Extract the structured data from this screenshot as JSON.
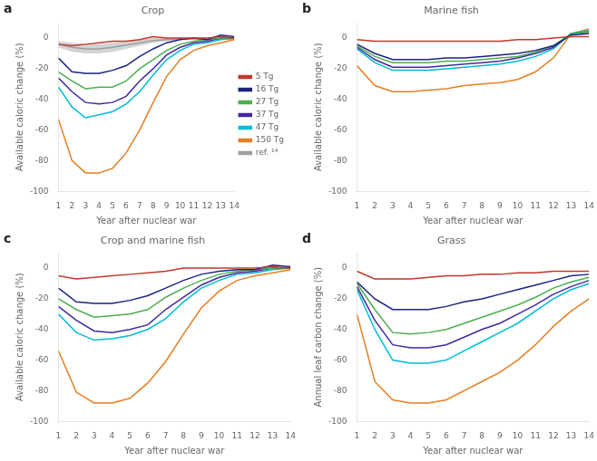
{
  "chart_data": [
    {
      "type": "line",
      "title": "Crop",
      "annotations": [
        {
          "text": "a"
        }
      ],
      "xlabel": "Year after nuclear war",
      "ylabel": "Available caloric change (%)",
      "x": [
        1,
        2,
        3,
        4,
        5,
        6,
        7,
        8,
        9,
        10,
        11,
        12,
        13,
        14
      ],
      "xlim": [
        1,
        14
      ],
      "xticks": [
        1,
        2,
        3,
        4,
        5,
        6,
        7,
        8,
        9,
        10,
        11,
        12,
        13,
        14
      ],
      "ylim": [
        -100,
        10
      ],
      "yticks": [
        0,
        -20,
        -40,
        -60,
        -80,
        -100
      ],
      "grid": false,
      "legend": "right",
      "series": [
        {
          "name": "5 Tg",
          "color": "#c0392b",
          "values": [
            -4,
            -5,
            -4,
            -3,
            -2,
            -2,
            -1,
            1,
            0,
            0,
            0,
            0,
            1,
            0
          ]
        },
        {
          "name": "16 Tg",
          "color": "#1a237e",
          "values": [
            -13,
            -22,
            -23,
            -23,
            -21,
            -18,
            -12,
            -7,
            -3,
            -1,
            0,
            -1,
            2,
            1
          ]
        },
        {
          "name": "27 Tg",
          "color": "#4caf50",
          "values": [
            -22,
            -28,
            -33,
            -32,
            -32,
            -28,
            -20,
            -14,
            -8,
            -4,
            -2,
            -1,
            0,
            0
          ]
        },
        {
          "name": "37 Tg",
          "color": "#4527a0",
          "values": [
            -26,
            -35,
            -42,
            -43,
            -42,
            -38,
            -28,
            -20,
            -11,
            -6,
            -3,
            -2,
            0,
            0
          ]
        },
        {
          "name": "47 Tg",
          "color": "#00bcd4",
          "values": [
            -32,
            -45,
            -52,
            -50,
            -48,
            -43,
            -35,
            -24,
            -14,
            -8,
            -4,
            -3,
            -1,
            0
          ]
        },
        {
          "name": "150 Tg",
          "color": "#e67e22",
          "values": [
            -53,
            -80,
            -88,
            -88,
            -85,
            -75,
            -60,
            -42,
            -25,
            -14,
            -8,
            -5,
            -3,
            -1
          ]
        },
        {
          "name": "ref. ¹⁴",
          "color": "#9e9e9e",
          "values": [
            -4,
            -6,
            -7,
            -7,
            -6,
            -4.5,
            -3,
            -1.5,
            -1,
            -0.5,
            -0.5,
            -0.5,
            -0.5,
            -0.5
          ],
          "low": [
            -6,
            -9,
            -10,
            -10,
            -9,
            -7,
            -5,
            -3,
            -2,
            -1,
            -1,
            -1,
            -1,
            -1
          ],
          "high": [
            -2,
            -3,
            -4,
            -4,
            -3,
            -2,
            -1,
            0,
            0,
            0,
            0,
            0,
            0,
            0
          ]
        }
      ]
    },
    {
      "type": "line",
      "title": "Marine fish",
      "annotations": [
        {
          "text": "b"
        }
      ],
      "xlabel": "Year after nuclear war",
      "ylabel": "Available caloric change (%)",
      "x": [
        1,
        2,
        3,
        4,
        5,
        6,
        7,
        8,
        9,
        10,
        11,
        12,
        13,
        14
      ],
      "xlim": [
        1,
        14
      ],
      "xticks": [
        1,
        2,
        3,
        4,
        5,
        6,
        7,
        8,
        9,
        10,
        11,
        12,
        13,
        14
      ],
      "ylim": [
        -100,
        10
      ],
      "yticks": [
        0,
        -20,
        -40,
        -60,
        -80,
        -100
      ],
      "grid": false,
      "series": [
        {
          "color": "#c0392b",
          "values": [
            -1,
            -2,
            -2,
            -2,
            -2,
            -2,
            -2,
            -2,
            -2,
            -1,
            -1,
            0,
            1,
            1
          ]
        },
        {
          "color": "#1a237e",
          "values": [
            -4,
            -10,
            -14,
            -14,
            -14,
            -13,
            -13,
            -12,
            -11,
            -10,
            -8,
            -5,
            2,
            3
          ]
        },
        {
          "color": "#4caf50",
          "values": [
            -5,
            -12,
            -16,
            -16,
            -16,
            -15,
            -15,
            -14,
            -13,
            -12,
            -9,
            -5,
            3,
            4
          ]
        },
        {
          "color": "#4527a0",
          "values": [
            -6,
            -14,
            -19,
            -19,
            -19,
            -18,
            -17,
            -16,
            -15,
            -13,
            -10,
            -6,
            3,
            4
          ]
        },
        {
          "color": "#00bcd4",
          "values": [
            -7,
            -16,
            -21,
            -21,
            -21,
            -20,
            -19,
            -18,
            -17,
            -15,
            -12,
            -7,
            3,
            5
          ]
        },
        {
          "color": "#e67e22",
          "values": [
            -18,
            -31,
            -35,
            -35,
            -34,
            -33,
            -31,
            -30,
            -29,
            -27,
            -22,
            -13,
            3,
            6
          ]
        }
      ]
    },
    {
      "type": "line",
      "title": "Crop and marine fish",
      "annotations": [
        {
          "text": "c"
        }
      ],
      "xlabel": "Year after nuclear war",
      "ylabel": "Available caloric change (%)",
      "x": [
        1,
        2,
        3,
        4,
        5,
        6,
        7,
        8,
        9,
        10,
        11,
        12,
        13,
        14
      ],
      "xlim": [
        1,
        14
      ],
      "xticks": [
        1,
        2,
        3,
        4,
        5,
        6,
        7,
        8,
        9,
        10,
        11,
        12,
        13,
        14
      ],
      "ylim": [
        -100,
        10
      ],
      "yticks": [
        0,
        -20,
        -40,
        -60,
        -80,
        -100
      ],
      "grid": false,
      "series": [
        {
          "color": "#c0392b",
          "values": [
            -5,
            -7,
            -6,
            -5,
            -4,
            -3,
            -2,
            0,
            0,
            0,
            0,
            0,
            1,
            0
          ]
        },
        {
          "color": "#1a237e",
          "values": [
            -13,
            -22,
            -23,
            -23,
            -21,
            -18,
            -13,
            -8,
            -4,
            -2,
            -1,
            -1,
            2,
            1
          ]
        },
        {
          "color": "#4caf50",
          "values": [
            -20,
            -27,
            -32,
            -31,
            -30,
            -27,
            -19,
            -13,
            -8,
            -4,
            -2,
            -1,
            0,
            0
          ]
        },
        {
          "color": "#4527a0",
          "values": [
            -25,
            -34,
            -41,
            -42,
            -40,
            -37,
            -27,
            -19,
            -11,
            -6,
            -3,
            -2,
            0,
            0
          ]
        },
        {
          "color": "#00bcd4",
          "values": [
            -30,
            -42,
            -47,
            -46,
            -44,
            -40,
            -33,
            -22,
            -13,
            -8,
            -4,
            -3,
            -1,
            0
          ]
        },
        {
          "color": "#e67e22",
          "values": [
            -54,
            -81,
            -88,
            -88,
            -85,
            -75,
            -61,
            -43,
            -26,
            -15,
            -8,
            -5,
            -3,
            -1
          ]
        }
      ]
    },
    {
      "type": "line",
      "title": "Grass",
      "annotations": [
        {
          "text": "d"
        }
      ],
      "xlabel": "Year after nuclear war",
      "ylabel": "Annual leaf carbon change (%)",
      "x": [
        1,
        2,
        3,
        4,
        5,
        6,
        7,
        8,
        9,
        10,
        11,
        12,
        13,
        14
      ],
      "xlim": [
        1,
        14
      ],
      "xticks": [
        1,
        2,
        3,
        4,
        5,
        6,
        7,
        8,
        9,
        10,
        11,
        12,
        13,
        14
      ],
      "ylim": [
        -100,
        10
      ],
      "yticks": [
        0,
        -20,
        -40,
        -60,
        -80,
        -100
      ],
      "grid": false,
      "series": [
        {
          "color": "#c0392b",
          "values": [
            -2,
            -7,
            -7,
            -7,
            -6,
            -5,
            -5,
            -4,
            -4,
            -3,
            -3,
            -2,
            -2,
            -2
          ]
        },
        {
          "color": "#1a237e",
          "values": [
            -9,
            -20,
            -27,
            -27,
            -27,
            -25,
            -22,
            -20,
            -17,
            -14,
            -11,
            -8,
            -5,
            -4
          ]
        },
        {
          "color": "#4caf50",
          "values": [
            -10,
            -27,
            -42,
            -43,
            -42,
            -40,
            -36,
            -32,
            -28,
            -24,
            -19,
            -13,
            -9,
            -6
          ]
        },
        {
          "color": "#4527a0",
          "values": [
            -12,
            -34,
            -50,
            -52,
            -52,
            -50,
            -45,
            -40,
            -36,
            -30,
            -24,
            -17,
            -12,
            -8
          ]
        },
        {
          "color": "#00bcd4",
          "values": [
            -14,
            -40,
            -60,
            -62,
            -62,
            -60,
            -54,
            -48,
            -42,
            -36,
            -28,
            -20,
            -14,
            -10
          ]
        },
        {
          "color": "#e67e22",
          "values": [
            -30,
            -74,
            -86,
            -88,
            -88,
            -86,
            -80,
            -74,
            -68,
            -60,
            -50,
            -38,
            -28,
            -20
          ]
        }
      ]
    }
  ]
}
